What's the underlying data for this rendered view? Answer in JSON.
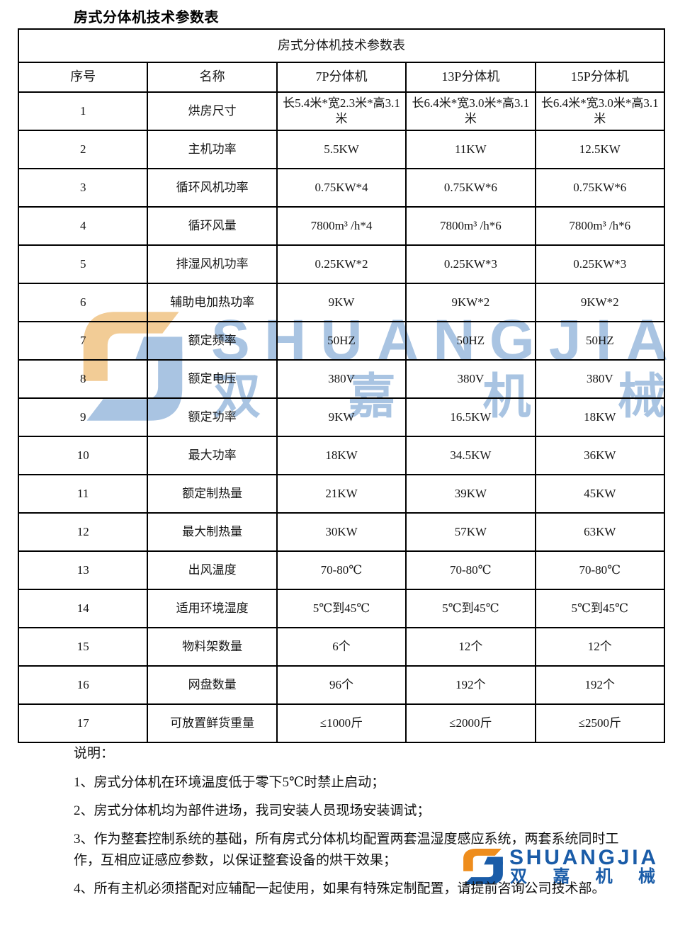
{
  "page": {
    "title": "房式分体机技术参数表"
  },
  "table": {
    "caption": "房式分体机技术参数表",
    "columns": [
      "序号",
      "名称",
      "7P分体机",
      "13P分体机",
      "15P分体机"
    ],
    "rows": [
      [
        "1",
        "烘房尺寸",
        "长5.4米*宽2.3米*高3.1米",
        "长6.4米*宽3.0米*高3.1米",
        "长6.4米*宽3.0米*高3.1米"
      ],
      [
        "2",
        "主机功率",
        "5.5KW",
        "11KW",
        "12.5KW"
      ],
      [
        "3",
        "循环风机功率",
        "0.75KW*4",
        "0.75KW*6",
        "0.75KW*6"
      ],
      [
        "4",
        "循环风量",
        "7800m³ /h*4",
        "7800m³ /h*6",
        "7800m³ /h*6"
      ],
      [
        "5",
        "排湿风机功率",
        "0.25KW*2",
        "0.25KW*3",
        "0.25KW*3"
      ],
      [
        "6",
        "辅助电加热功率",
        "9KW",
        "9KW*2",
        "9KW*2"
      ],
      [
        "7",
        "额定频率",
        "50HZ",
        "50HZ",
        "50HZ"
      ],
      [
        "8",
        "额定电压",
        "380V",
        "380V",
        "380V"
      ],
      [
        "9",
        "额定功率",
        "9KW",
        "16.5KW",
        "18KW"
      ],
      [
        "10",
        "最大功率",
        "18KW",
        "34.5KW",
        "36KW"
      ],
      [
        "11",
        "额定制热量",
        "21KW",
        "39KW",
        "45KW"
      ],
      [
        "12",
        "最大制热量",
        "30KW",
        "57KW",
        "63KW"
      ],
      [
        "13",
        "出风温度",
        "70-80℃",
        "70-80℃",
        "70-80℃"
      ],
      [
        "14",
        "适用环境湿度",
        "5℃到45℃",
        "5℃到45℃",
        "5℃到45℃"
      ],
      [
        "15",
        "物料架数量",
        "6个",
        "12个",
        "12个"
      ],
      [
        "16",
        "网盘数量",
        "96个",
        "192个",
        "192个"
      ],
      [
        "17",
        "可放置鲜货重量",
        "≤1000斤",
        "≤2000斤",
        "≤2500斤"
      ]
    ]
  },
  "notes": {
    "heading": "说明：",
    "items": [
      "1、房式分体机在环境温度低于零下5℃时禁止启动；",
      "2、房式分体机均为部件进场，我司安装人员现场安装调试；",
      "3、作为整套控制系统的基础，所有房式分体机均配置两套温湿度感应系统，两套系统同时工作，互相应证感应参数，以保证整套设备的烘干效果；",
      "4、所有主机必须搭配对应辅配一起使用，如果有特殊定制配置，请提前咨询公司技术部。"
    ]
  },
  "watermark": {
    "brand_latin": "SHUANGJIA",
    "brand_cn": "双嘉机械",
    "blue": "#a9c4e2",
    "orange": "#f2cc96"
  },
  "footer_logo": {
    "brand_latin": "SHUANGJIA",
    "brand_cn": "双嘉机械",
    "blue": "#1a5ca8",
    "orange": "#ee8d1d"
  }
}
